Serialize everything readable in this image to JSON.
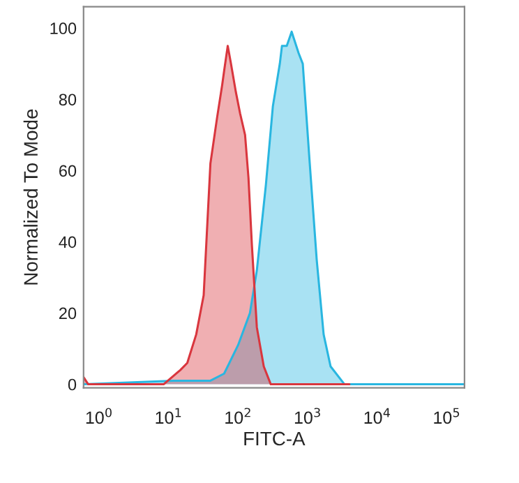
{
  "chart_data": {
    "type": "area",
    "xlabel": "FITC-A",
    "ylabel": "Normalized To Mode",
    "log": "x",
    "xlim": [
      0.6,
      180000
    ],
    "ylim": [
      -1,
      106
    ],
    "xticks": [
      {
        "value": 1,
        "label": "10$^{0}$"
      },
      {
        "value": 10,
        "label": "10$^{1}$"
      },
      {
        "value": 100,
        "label": "10$^{2}$"
      },
      {
        "value": 1000,
        "label": "10$^{3}$"
      },
      {
        "value": 10000,
        "label": "10$^{4}$"
      },
      {
        "value": 100000,
        "label": "10$^{5}$"
      }
    ],
    "yticks": [
      0,
      20,
      40,
      60,
      80,
      100
    ],
    "grid": false,
    "legend": false,
    "series": [
      {
        "color": "#29b6e0",
        "x": [
          0.6,
          11.7,
          40,
          63,
          100,
          148,
          186,
          251,
          316,
          398,
          427,
          501,
          589,
          741,
          851,
          1072,
          1349,
          1698,
          2138,
          3388,
          180000
        ],
        "values": [
          0,
          1,
          1,
          3,
          11,
          20,
          32,
          56,
          78,
          90,
          95,
          95,
          99,
          93,
          90,
          62,
          35,
          14,
          5,
          0,
          0
        ]
      },
      {
        "color": "#d9363e",
        "x": [
          0.6,
          0.7,
          4.7,
          8.5,
          14.8,
          18.6,
          25,
          32,
          40,
          50,
          59,
          63,
          71,
          79,
          93,
          107,
          126,
          141,
          158,
          186,
          234,
          295,
          3980
        ],
        "values": [
          2,
          0,
          0,
          0,
          4,
          6,
          14,
          25,
          62,
          75,
          84,
          88,
          95,
          90,
          82,
          76,
          70,
          58,
          39,
          16,
          5,
          0,
          0
        ]
      }
    ]
  }
}
